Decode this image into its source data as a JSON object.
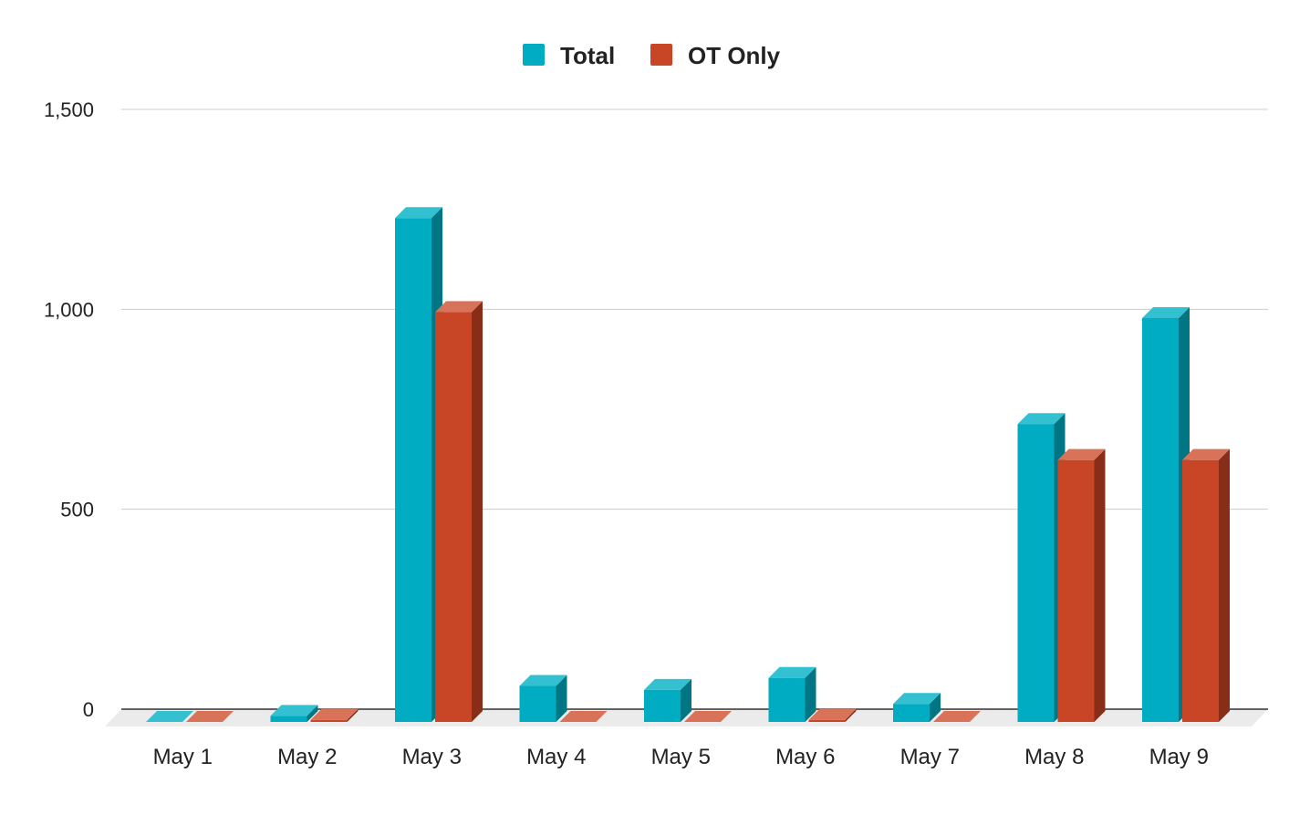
{
  "colors": {
    "series": [
      {
        "front": "#00acc1",
        "top": "#33c0d0",
        "side": "#007684"
      },
      {
        "front": "#c84526",
        "top": "#d8735a",
        "side": "#882d17"
      }
    ],
    "grid": "#cccccc",
    "baseline": "#333333",
    "floor": "#ebebeb"
  },
  "chart_data": {
    "type": "bar",
    "style": "3d-clustered-column",
    "categories": [
      "May 1",
      "May 2",
      "May 3",
      "May 4",
      "May 5",
      "May 6",
      "May 7",
      "May 8",
      "May 9"
    ],
    "series": [
      {
        "name": "Total",
        "values": [
          0,
          15,
          1260,
          90,
          80,
          110,
          45,
          745,
          1010
        ]
      },
      {
        "name": "OT Only",
        "values": [
          0,
          5,
          1025,
          0,
          0,
          5,
          0,
          655,
          655
        ]
      }
    ],
    "yticks": [
      0,
      500,
      1000,
      1500
    ],
    "ytick_labels": [
      "0",
      "500",
      "1,000",
      "1,500"
    ],
    "ylim": [
      0,
      1500
    ],
    "grid": true,
    "legend": "top-center",
    "title": "",
    "xlabel": "",
    "ylabel": ""
  }
}
